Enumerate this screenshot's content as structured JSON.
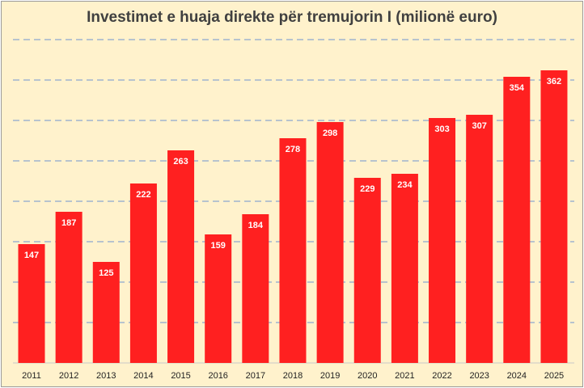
{
  "chart_data": {
    "type": "bar",
    "title": "Investimet e huaja direkte për tremujorin I (milionë euro)",
    "categories": [
      "2011",
      "2012",
      "2013",
      "2014",
      "2015",
      "2016",
      "2017",
      "2018",
      "2019",
      "2020",
      "2021",
      "2022",
      "2023",
      "2024",
      "2025"
    ],
    "values": [
      147,
      187,
      125,
      222,
      263,
      159,
      184,
      278,
      298,
      229,
      234,
      303,
      307,
      354,
      362
    ],
    "xlabel": "",
    "ylabel": "",
    "ylim": [
      0,
      400
    ],
    "grid": true,
    "gridStep": 50,
    "legend": "none",
    "colors": {
      "bar": "#ff2020",
      "grid": "#9fb3cf",
      "background": "#fff2cc"
    }
  }
}
